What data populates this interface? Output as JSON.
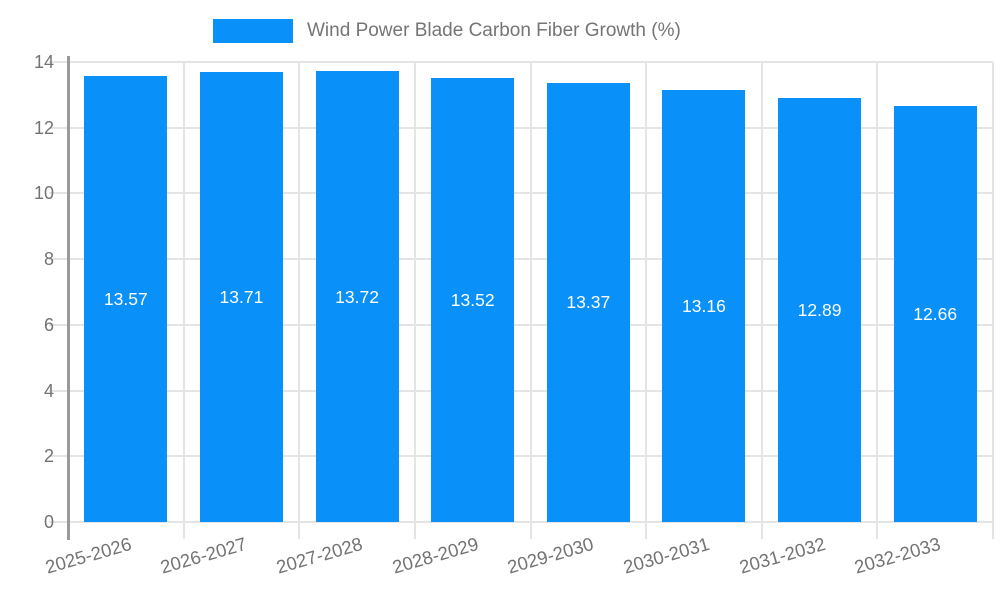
{
  "legend": {
    "label": "Wind Power Blade Carbon Fiber Growth (%)"
  },
  "chart_data": {
    "type": "bar",
    "title": "Wind Power Blade Carbon Fiber Growth (%)",
    "categories": [
      "2025-2026",
      "2026-2027",
      "2027-2028",
      "2028-2029",
      "2029-2030",
      "2030-2031",
      "2031-2032",
      "2032-2033"
    ],
    "values": [
      13.57,
      13.71,
      13.72,
      13.52,
      13.37,
      13.16,
      12.89,
      12.66
    ],
    "value_labels": [
      "13.57",
      "13.71",
      "13.72",
      "13.52",
      "13.37",
      "13.16",
      "12.89",
      "12.66"
    ],
    "xlabel": "",
    "ylabel": "",
    "ylim": [
      0,
      14
    ],
    "yticks": [
      0,
      2,
      4,
      6,
      8,
      10,
      12,
      14
    ],
    "grid": true,
    "legend_position": "top-center",
    "colors": {
      "bar": "#0990f9",
      "grid": "#e4e4e4",
      "axis_line": "#9a9a9a",
      "tick_label": "#737373",
      "legend_text": "#757575",
      "bar_label": "#ffffff",
      "background": "#ffffff"
    }
  }
}
